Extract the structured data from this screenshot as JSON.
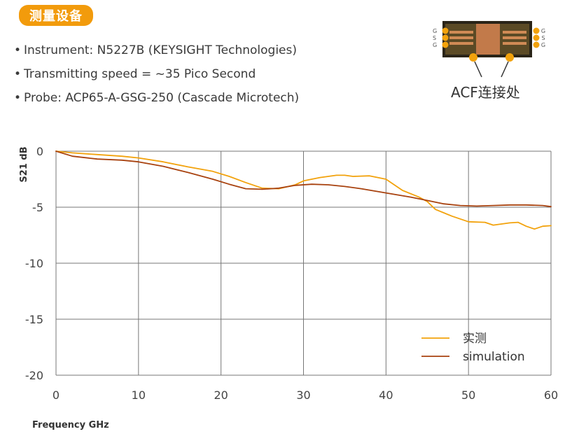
{
  "header": {
    "badge_label": "测量设备",
    "specs": [
      "Instrument: N5227B (KEYSIGHT Technologies)",
      "Transmitting speed = ~35 Pico Second",
      "Probe: ACP65-A-GSG-250 (Cascade Microtech)"
    ]
  },
  "probe_image": {
    "label": "ACF连接处",
    "pad_letters_left": [
      "G",
      "S",
      "G"
    ],
    "pad_letters_right": [
      "G",
      "S",
      "G"
    ]
  },
  "colors": {
    "accent": "#f29b0c",
    "measured": "#f2a20c",
    "simulation": "#a8420f",
    "grid": "#777777"
  },
  "chart_data": {
    "type": "line",
    "title": "",
    "xlabel": "Frequency GHz",
    "ylabel": "S21 dB",
    "xlim": [
      0,
      60
    ],
    "ylim": [
      -20,
      0
    ],
    "xticks": [
      0,
      10,
      20,
      30,
      40,
      50,
      60
    ],
    "yticks": [
      0,
      -5,
      -10,
      -15,
      -20
    ],
    "grid": "vertical",
    "legend_position": "bottom-right",
    "series": [
      {
        "name": "实测",
        "color": "#f2a20c",
        "x": [
          0,
          2,
          5,
          8,
          10,
          13,
          16,
          19,
          21,
          23,
          25,
          27,
          29,
          30,
          32,
          34,
          35,
          36,
          38,
          40,
          42,
          44,
          45,
          46,
          48,
          50,
          52,
          53,
          55,
          56,
          57,
          58,
          59,
          60
        ],
        "y": [
          0,
          -0.15,
          -0.3,
          -0.45,
          -0.6,
          -0.95,
          -1.4,
          -1.8,
          -2.25,
          -2.8,
          -3.3,
          -3.35,
          -3.0,
          -2.65,
          -2.35,
          -2.15,
          -2.15,
          -2.25,
          -2.2,
          -2.5,
          -3.5,
          -4.1,
          -4.5,
          -5.2,
          -5.8,
          -6.3,
          -6.35,
          -6.6,
          -6.4,
          -6.35,
          -6.7,
          -6.95,
          -6.7,
          -6.65
        ]
      },
      {
        "name": "simulation",
        "color": "#a8420f",
        "x": [
          0,
          2,
          5,
          8,
          10,
          13,
          16,
          19,
          21,
          23,
          25,
          27,
          29,
          31,
          33,
          35,
          37,
          39,
          41,
          43,
          45,
          47,
          49,
          51,
          53,
          55,
          57,
          59,
          60
        ],
        "y": [
          0,
          -0.45,
          -0.7,
          -0.8,
          -0.95,
          -1.35,
          -1.9,
          -2.5,
          -2.95,
          -3.35,
          -3.4,
          -3.3,
          -3.05,
          -2.95,
          -3.0,
          -3.15,
          -3.35,
          -3.6,
          -3.85,
          -4.1,
          -4.4,
          -4.7,
          -4.85,
          -4.9,
          -4.85,
          -4.8,
          -4.8,
          -4.85,
          -4.95
        ]
      }
    ]
  }
}
